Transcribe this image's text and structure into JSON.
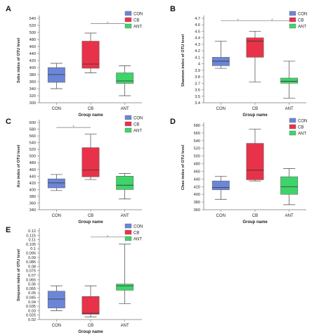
{
  "colors": {
    "CON": "#6b86d8",
    "CB": "#e8324a",
    "ANT": "#3fd46a",
    "sig": "#e23a3a"
  },
  "chart_data": [
    {
      "panel": "A",
      "type": "box",
      "ylabel": "Sobs index of OTU level",
      "xlabel": "Group name",
      "ylim": [
        300,
        540
      ],
      "yticks": [
        300,
        320,
        340,
        360,
        380,
        400,
        420,
        440,
        460,
        480,
        500,
        520,
        540
      ],
      "legend": [
        "CON",
        "CB",
        "ANT"
      ],
      "boxes": [
        {
          "group": "CON",
          "min": 340,
          "q1": 358,
          "median": 380,
          "q3": 400,
          "max": 412
        },
        {
          "group": "CB",
          "min": 385,
          "q1": 398,
          "median": 410,
          "q3": 475,
          "max": 498
        },
        {
          "group": "ANT",
          "min": 320,
          "q1": 355,
          "median": 362,
          "q3": 385,
          "max": 405
        }
      ],
      "sig": [
        {
          "from": "CB",
          "to": "ANT",
          "y": 525,
          "label": "*"
        }
      ]
    },
    {
      "panel": "B",
      "type": "box",
      "ylabel": "Shannon index of OTU level",
      "xlabel": "Group name",
      "ylim": [
        3.4,
        4.7
      ],
      "yticks": [
        3.4,
        3.5,
        3.6,
        3.7,
        3.8,
        3.9,
        4.0,
        4.1,
        4.2,
        4.3,
        4.4,
        4.5,
        4.6,
        4.7
      ],
      "ytick_labels": [
        "3.4",
        "3.5",
        "3.6",
        "3.7",
        "3.8",
        "3.9",
        "4",
        "4.1",
        "4.2",
        "4.3",
        "4.4",
        "4.5",
        "4.6",
        "4.7"
      ],
      "legend": [
        "CON",
        "CB",
        "ANT"
      ],
      "boxes": [
        {
          "group": "CON",
          "min": 3.93,
          "q1": 3.97,
          "median": 4.04,
          "q3": 4.1,
          "max": 4.35
        },
        {
          "group": "CB",
          "min": 3.72,
          "q1": 4.1,
          "median": 4.35,
          "q3": 4.4,
          "max": 4.5
        },
        {
          "group": "ANT",
          "min": 3.47,
          "q1": 3.7,
          "median": 3.73,
          "q3": 3.78,
          "max": 4.04
        }
      ],
      "sig": [
        {
          "from": "CON",
          "to": "CB",
          "y": 4.66,
          "label": "*"
        },
        {
          "from": "CB",
          "to": "ANT",
          "y": 4.66,
          "label": "*"
        }
      ]
    },
    {
      "panel": "C",
      "type": "box",
      "ylabel": "Ace index of OTU level",
      "xlabel": "Group name",
      "ylim": [
        340,
        600
      ],
      "yticks": [
        340,
        360,
        380,
        400,
        420,
        440,
        460,
        480,
        500,
        520,
        540,
        560,
        580,
        600
      ],
      "legend": [
        "CON",
        "CB",
        "ANT"
      ],
      "boxes": [
        {
          "group": "CON",
          "min": 397,
          "q1": 405,
          "median": 420,
          "q3": 432,
          "max": 445
        },
        {
          "group": "CB",
          "min": 430,
          "q1": 438,
          "median": 458,
          "q3": 525,
          "max": 565
        },
        {
          "group": "ANT",
          "min": 372,
          "q1": 400,
          "median": 413,
          "q3": 440,
          "max": 448
        }
      ],
      "sig": [
        {
          "from": "CON",
          "to": "CB",
          "y": 585,
          "label": "*"
        }
      ]
    },
    {
      "panel": "D",
      "type": "box",
      "ylabel": "Chao index of OTU level",
      "xlabel": "Group name",
      "ylim": [
        360,
        580
      ],
      "yticks": [
        360,
        380,
        400,
        420,
        440,
        460,
        480,
        500,
        520,
        540,
        560,
        580
      ],
      "legend": [
        "CON",
        "CB",
        "ANT"
      ],
      "boxes": [
        {
          "group": "CON",
          "min": 387,
          "q1": 412,
          "median": 418,
          "q3": 435,
          "max": 447
        },
        {
          "group": "CB",
          "min": 435,
          "q1": 438,
          "median": 463,
          "q3": 533,
          "max": 570
        },
        {
          "group": "ANT",
          "min": 373,
          "q1": 400,
          "median": 420,
          "q3": 446,
          "max": 467
        }
      ],
      "sig": []
    },
    {
      "panel": "E",
      "type": "box",
      "ylabel": "Simpson index of OTU level",
      "xlabel": "Group name",
      "ylim": [
        0.02,
        0.12
      ],
      "yticks": [
        0.02,
        0.025,
        0.03,
        0.035,
        0.04,
        0.045,
        0.05,
        0.055,
        0.06,
        0.065,
        0.07,
        0.075,
        0.08,
        0.085,
        0.09,
        0.095,
        0.1,
        0.105,
        0.11,
        0.115,
        0.12
      ],
      "ytick_labels": [
        "0.02",
        "0.025",
        "0.03",
        "0.035",
        "0.04",
        "0.045",
        "0.05",
        "0.055",
        "0.06",
        "0.065",
        "0.07",
        "0.075",
        "0.08",
        "0.085",
        "0.09",
        "0.095",
        "0.1",
        "0.105",
        "0.11",
        "0.115",
        "0.12"
      ],
      "legend": [
        "CON",
        "CB",
        "ANT"
      ],
      "boxes": [
        {
          "group": "CON",
          "min": 0.03,
          "q1": 0.033,
          "median": 0.043,
          "q3": 0.052,
          "max": 0.058
        },
        {
          "group": "CB",
          "min": 0.023,
          "q1": 0.026,
          "median": 0.027,
          "q3": 0.046,
          "max": 0.058
        },
        {
          "group": "ANT",
          "min": 0.038,
          "q1": 0.053,
          "median": 0.058,
          "q3": 0.06,
          "max": 0.105
        }
      ],
      "sig": [
        {
          "from": "CB",
          "to": "ANT",
          "y": 0.113,
          "label": "*"
        }
      ]
    }
  ]
}
